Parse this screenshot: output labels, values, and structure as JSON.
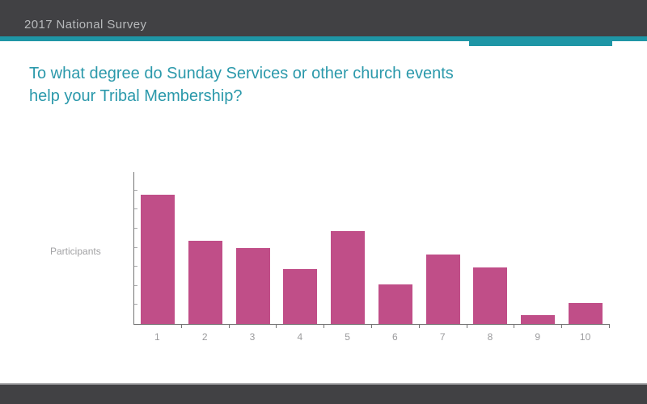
{
  "slide": {
    "header": {
      "label": "2017 National Survey"
    },
    "title": "To what degree do Sunday Services or other church events help your Tribal Membership?",
    "title_lines": {
      "line1": "To what degree do Sunday Services or other church events",
      "line2": "help your Tribal Membership?"
    }
  },
  "colors": {
    "header_bg": "#414144",
    "accent_teal": "#1e96a6",
    "title_teal": "#2b99ab",
    "bar_pink": "#c04e88",
    "axis_gray": "#757575",
    "tick_label_gray": "#9b9b9d"
  },
  "chart_data": {
    "type": "bar",
    "categories": [
      "1",
      "2",
      "3",
      "4",
      "5",
      "6",
      "7",
      "8",
      "9",
      "10"
    ],
    "values": [
      85,
      55,
      50,
      36,
      61,
      26,
      46,
      37,
      6,
      14
    ],
    "title": "",
    "xlabel": "",
    "ylabel": "Participants",
    "ylim": [
      0,
      100
    ],
    "units": "percent of y-axis height (y-axis has unlabeled ticks in source)",
    "grid": false,
    "legend": false,
    "bar_color": "#c04e88"
  }
}
